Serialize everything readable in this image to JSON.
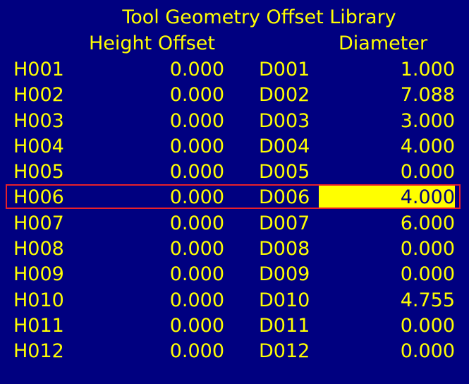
{
  "title": "Tool Geometry Offset Library",
  "headers": {
    "height": "Height Offset",
    "diameter": "Diameter"
  },
  "rows": [
    {
      "h": "H001",
      "hv": "0.000",
      "d": "D001",
      "dv": "1.000"
    },
    {
      "h": "H002",
      "hv": "0.000",
      "d": "D002",
      "dv": "7.088"
    },
    {
      "h": "H003",
      "hv": "0.000",
      "d": "D003",
      "dv": "3.000"
    },
    {
      "h": "H004",
      "hv": "0.000",
      "d": "D004",
      "dv": "4.000"
    },
    {
      "h": "H005",
      "hv": "0.000",
      "d": "D005",
      "dv": "0.000"
    },
    {
      "h": "H006",
      "hv": "0.000",
      "d": "D006",
      "dv": "4.000"
    },
    {
      "h": "H007",
      "hv": "0.000",
      "d": "D007",
      "dv": "6.000"
    },
    {
      "h": "H008",
      "hv": "0.000",
      "d": "D008",
      "dv": "0.000"
    },
    {
      "h": "H009",
      "hv": "0.000",
      "d": "D009",
      "dv": "0.000"
    },
    {
      "h": "H010",
      "hv": "0.000",
      "d": "D010",
      "dv": "4.755"
    },
    {
      "h": "H011",
      "hv": "0.000",
      "d": "D011",
      "dv": "0.000"
    },
    {
      "h": "H012",
      "hv": "0.000",
      "d": "D012",
      "dv": "0.000"
    }
  ],
  "selected_row": 5,
  "colors": {
    "background": "#000080",
    "text": "#ffff00",
    "selection_frame": "#e8202a",
    "edit_highlight": "#ffff00"
  }
}
